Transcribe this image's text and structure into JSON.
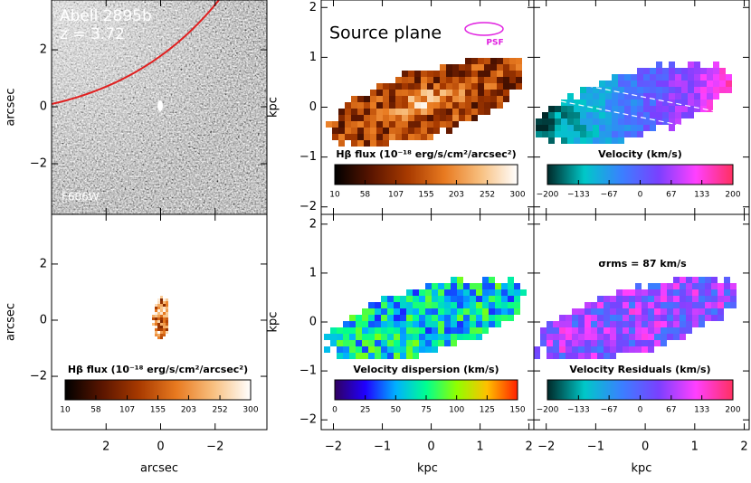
{
  "chart_data": [
    {
      "type": "image",
      "label": "Abell 2895b",
      "redshift": "z = 3.72",
      "filter": "F606W",
      "ylabel": "arcsec",
      "ylim": [
        -3.78,
        3.75
      ],
      "yticks": [
        2,
        0,
        {
          "value": -2,
          "label": "−2"
        }
      ]
    },
    {
      "type": "image",
      "xlabel": "arcsec",
      "ylabel": "arcsec",
      "xlim": [
        4.0,
        -3.9
      ],
      "xticks": [
        2,
        0,
        {
          "value": -2,
          "label": "−2"
        }
      ],
      "ylim": [
        -3.9,
        3.77
      ],
      "yticks": [
        2,
        0,
        {
          "value": -2,
          "label": "−2"
        }
      ],
      "colorbar": {
        "label": "Hβ flux (10⁻¹⁸ erg/s/cm²/arcsec²)",
        "lim": [
          10,
          300
        ],
        "ticks": [
          10,
          58,
          107,
          155,
          203,
          252,
          300
        ],
        "colors": [
          "#000000",
          "#5a1500",
          "#a83a00",
          "#e87a20",
          "#f8c080",
          "#ffffff"
        ]
      }
    },
    {
      "type": "image",
      "title": "Source plane",
      "psf_label": "PSF",
      "ylabel": "kpc",
      "ylim": [
        -2.15,
        2.15
      ],
      "yticks": [
        2,
        1,
        0,
        {
          "value": -1,
          "label": "−1"
        },
        {
          "value": -2,
          "label": "−2"
        }
      ],
      "colorbar": {
        "label": "Hβ flux (10⁻¹⁸ erg/s/cm²/arcsec²)",
        "lim": [
          10,
          300
        ],
        "ticks": [
          10,
          58,
          107,
          155,
          203,
          252,
          300
        ],
        "colors": [
          "#000000",
          "#5a1500",
          "#a83a00",
          "#e87a20",
          "#f8c080",
          "#ffffff"
        ]
      }
    },
    {
      "type": "image",
      "colorbar": {
        "label": "Velocity (km/s)",
        "lim": [
          -200,
          200
        ],
        "ticks": [
          {
            "value": -200,
            "label": "−200"
          },
          {
            "value": -133,
            "label": "−133"
          },
          {
            "value": -67,
            "label": "−67"
          },
          0,
          67,
          133,
          200
        ],
        "colors": [
          "#002828",
          "#00c8c8",
          "#3a80ff",
          "#7a40ff",
          "#ff40ff",
          "#ff3060"
        ]
      }
    },
    {
      "type": "image",
      "xlabel": "kpc",
      "ylabel": "kpc",
      "xlim": [
        -2.25,
        2.1
      ],
      "xticks": [
        {
          "value": -2,
          "label": "−2"
        },
        {
          "value": -1,
          "label": "−1"
        },
        0,
        1,
        2
      ],
      "ylim": [
        -2.2,
        2.2
      ],
      "yticks": [
        2,
        1,
        0,
        {
          "value": -1,
          "label": "−1"
        },
        {
          "value": -2,
          "label": "−2"
        }
      ],
      "colorbar": {
        "label": "Velocity dispersion (km/s)",
        "lim": [
          0,
          150
        ],
        "ticks": [
          0,
          25,
          50,
          75,
          100,
          125,
          150
        ],
        "colors": [
          "#300060",
          "#2000ff",
          "#00b0ff",
          "#00ff90",
          "#90ff00",
          "#ffc000",
          "#ff2000"
        ]
      }
    },
    {
      "type": "image",
      "annotation": "σrms = 87 km/s",
      "xlabel": "kpc",
      "xlim": [
        -2.25,
        2.1
      ],
      "xticks": [
        {
          "value": -2,
          "label": "−2"
        },
        {
          "value": -1,
          "label": "−1"
        },
        0,
        1,
        2
      ],
      "colorbar": {
        "label": "Velocity Residuals (km/s)",
        "lim": [
          -200,
          200
        ],
        "ticks": [
          {
            "value": -200,
            "label": "−200"
          },
          {
            "value": -133,
            "label": "−133"
          },
          {
            "value": -67,
            "label": "−67"
          },
          0,
          67,
          133,
          200
        ],
        "colors": [
          "#002828",
          "#00c8c8",
          "#3a80ff",
          "#7a40ff",
          "#ff40ff",
          "#ff3060"
        ]
      }
    }
  ]
}
